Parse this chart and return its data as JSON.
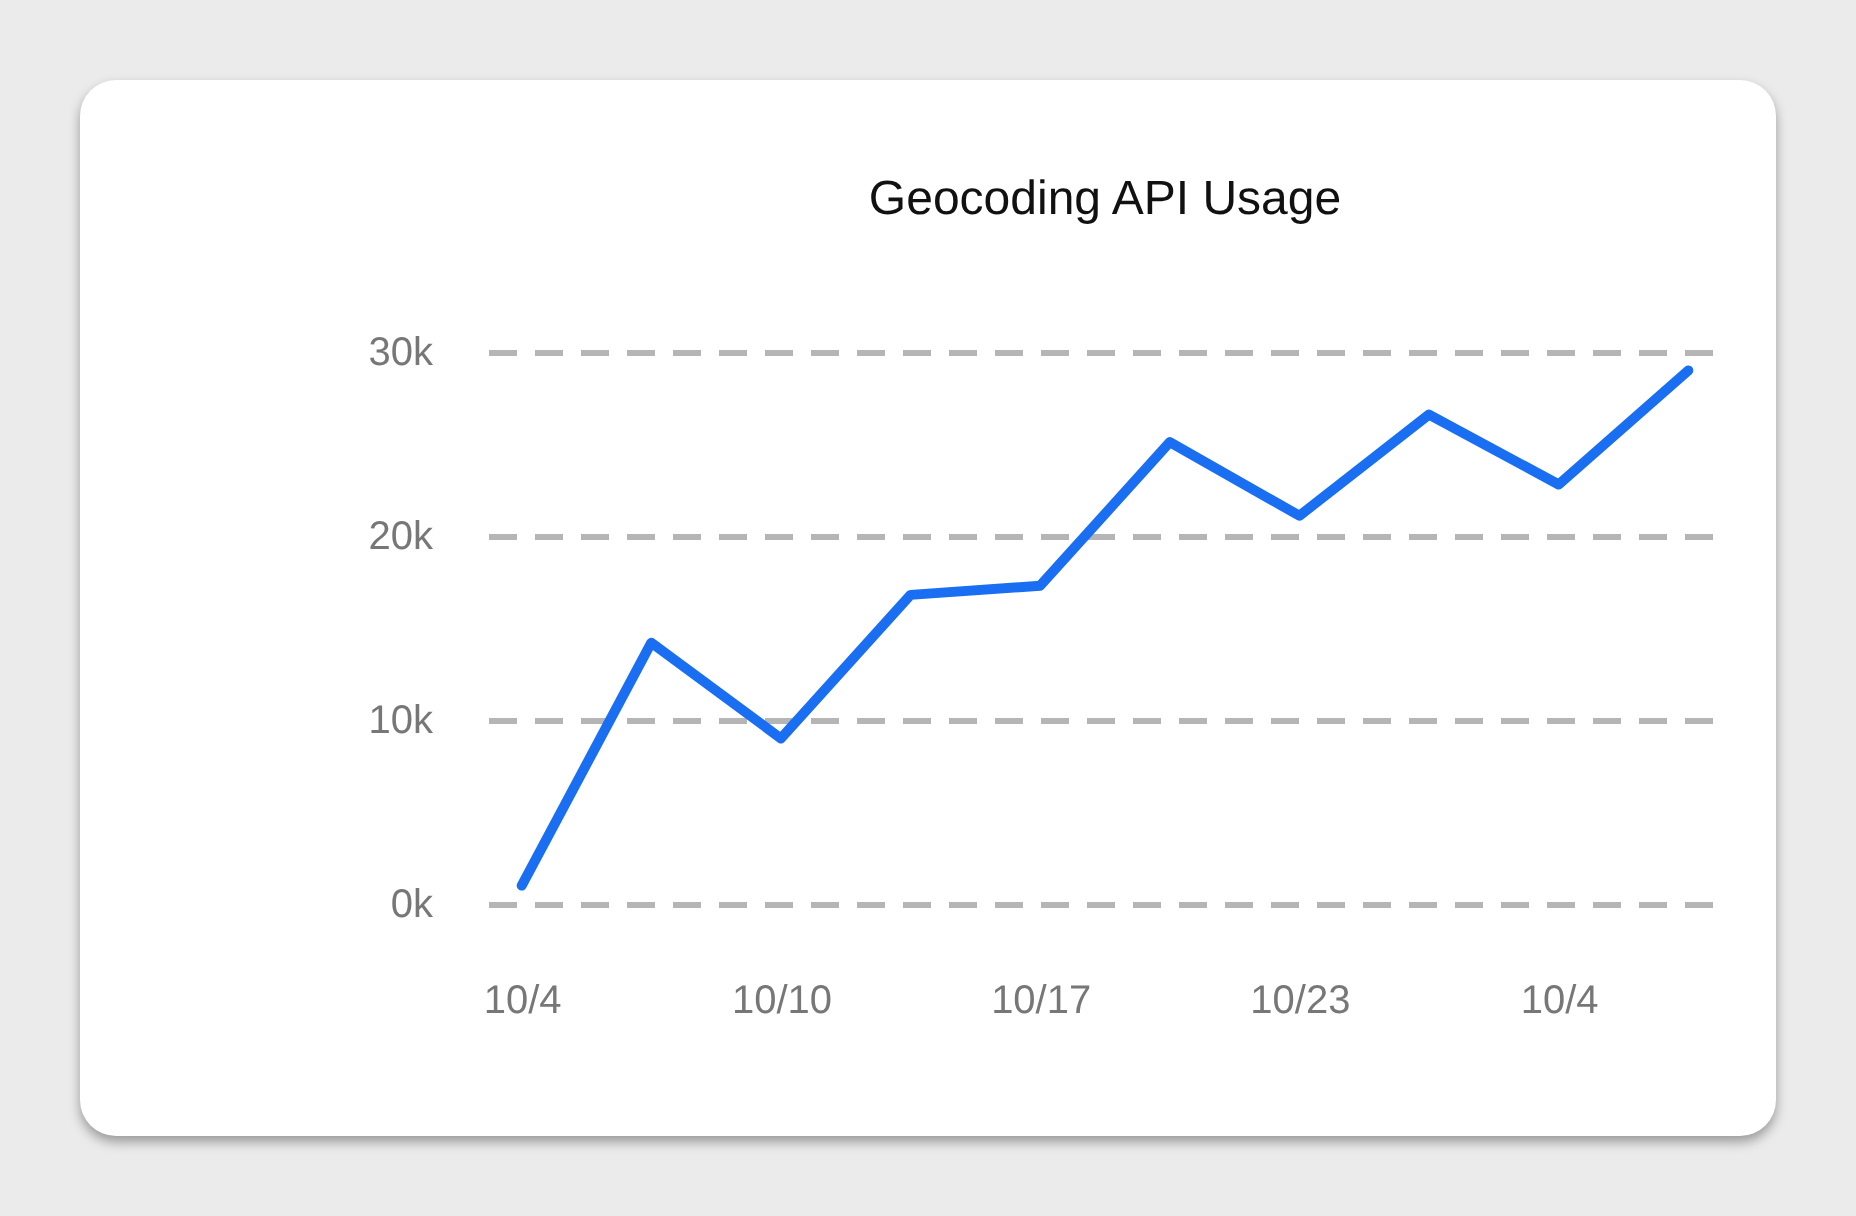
{
  "chart_data": {
    "type": "line",
    "title": "Geocoding API Usage",
    "categories": [
      "10/4",
      null,
      "10/10",
      null,
      "10/17",
      null,
      "10/23",
      null,
      "10/4",
      null
    ],
    "series": [
      {
        "color": "#1a6ef2",
        "values": [
          1000,
          14200,
          9000,
          16800,
          17300,
          25100,
          21100,
          26600,
          22800,
          29000
        ]
      }
    ],
    "ylim": [
      0,
      30000
    ],
    "yticks": [
      {
        "value": 0,
        "label": "0k"
      },
      {
        "value": 10000,
        "label": "10k"
      },
      {
        "value": 20000,
        "label": "20k"
      },
      {
        "value": 30000,
        "label": "30k"
      }
    ],
    "grid": "y",
    "line_style": "solid"
  }
}
